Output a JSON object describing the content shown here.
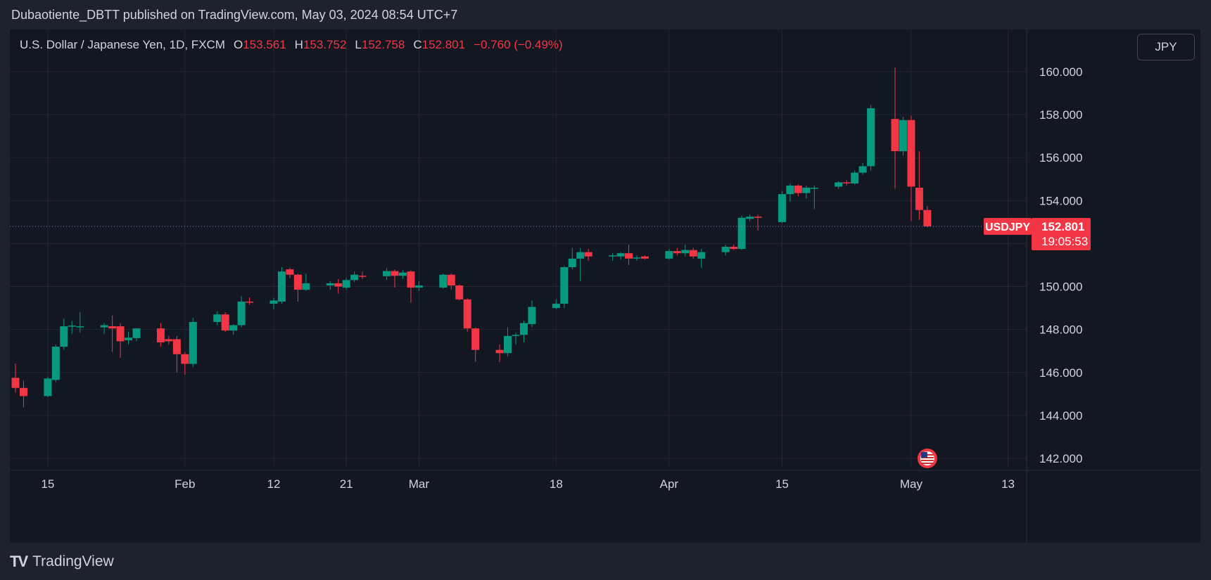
{
  "header": {
    "published_text": "Dubaotiente_DBTT published on TradingView.com, May 03, 2024 08:54 UTC+7"
  },
  "legend": {
    "symbol": "U.S. Dollar / Japanese Yen, 1D, FXCM",
    "open_label": "O",
    "open": "153.561",
    "high_label": "H",
    "high": "153.752",
    "low_label": "L",
    "low": "152.758",
    "close_label": "C",
    "close": "152.801",
    "change": "−0.760 (−0.49%)"
  },
  "currency_button": "JPY",
  "price_tag": {
    "ticker": "USDJPY",
    "price": "152.801",
    "countdown": "19:05:53"
  },
  "footer": {
    "logo_mark": "TV",
    "logo_text": "TradingView"
  },
  "colors": {
    "up": "#089981",
    "down": "#f23645",
    "background": "#131722",
    "grid": "#232632"
  },
  "chart_data": {
    "type": "candlestick",
    "symbol": "USDJPY",
    "ylim": [
      141.5,
      162.5
    ],
    "yticks": [
      160,
      158,
      156,
      154,
      152,
      150,
      148,
      146,
      144,
      142
    ],
    "ytick_labels": [
      "160.000",
      "158.000",
      "156.000",
      "154.000",
      "152.000",
      "150.000",
      "148.000",
      "146.000",
      "144.000",
      "142.000"
    ],
    "xtick_labels": [
      "15",
      "Feb",
      "12",
      "21",
      "Mar",
      "18",
      "Apr",
      "15",
      "May",
      "13"
    ],
    "xtick_dates": [
      "2024-01-15",
      "2024-02-01",
      "2024-02-12",
      "2024-02-21",
      "2024-03-01",
      "2024-03-18",
      "2024-04-01",
      "2024-04-15",
      "2024-05-01",
      "2024-05-13"
    ],
    "xlim": [
      "2024-01-11",
      "2024-05-14"
    ],
    "last_price": 152.801,
    "candles": [
      {
        "date": "2024-01-11",
        "o": 145.75,
        "h": 146.42,
        "l": 145.05,
        "c": 145.28
      },
      {
        "date": "2024-01-12",
        "o": 145.28,
        "h": 145.62,
        "l": 144.38,
        "c": 144.9
      },
      {
        "date": "2024-01-15",
        "o": 144.9,
        "h": 145.8,
        "l": 144.85,
        "c": 145.72
      },
      {
        "date": "2024-01-16",
        "o": 145.65,
        "h": 147.3,
        "l": 145.55,
        "c": 147.2
      },
      {
        "date": "2024-01-17",
        "o": 147.2,
        "h": 148.5,
        "l": 147.05,
        "c": 148.15
      },
      {
        "date": "2024-01-18",
        "o": 148.15,
        "h": 148.4,
        "l": 147.8,
        "c": 148.18
      },
      {
        "date": "2024-01-19",
        "o": 148.1,
        "h": 148.8,
        "l": 147.85,
        "c": 148.15
      },
      {
        "date": "2024-01-22",
        "o": 148.1,
        "h": 148.3,
        "l": 147.8,
        "c": 148.2
      },
      {
        "date": "2024-01-23",
        "o": 148.15,
        "h": 148.65,
        "l": 146.95,
        "c": 148.05
      },
      {
        "date": "2024-01-24",
        "o": 148.15,
        "h": 148.3,
        "l": 146.68,
        "c": 147.45
      },
      {
        "date": "2024-01-25",
        "o": 147.5,
        "h": 147.9,
        "l": 147.3,
        "c": 147.62
      },
      {
        "date": "2024-01-26",
        "o": 147.6,
        "h": 148.05,
        "l": 147.45,
        "c": 148.05
      },
      {
        "date": "2024-01-29",
        "o": 148.05,
        "h": 148.3,
        "l": 147.2,
        "c": 147.4
      },
      {
        "date": "2024-01-30",
        "o": 147.55,
        "h": 147.7,
        "l": 147.3,
        "c": 147.45
      },
      {
        "date": "2024-01-31",
        "o": 147.55,
        "h": 147.7,
        "l": 146.0,
        "c": 146.85
      },
      {
        "date": "2024-02-01",
        "o": 146.85,
        "h": 146.95,
        "l": 145.9,
        "c": 146.4
      },
      {
        "date": "2024-02-02",
        "o": 146.4,
        "h": 148.55,
        "l": 146.25,
        "c": 148.35
      },
      {
        "date": "2024-02-05",
        "o": 148.35,
        "h": 148.85,
        "l": 148.2,
        "c": 148.7
      },
      {
        "date": "2024-02-06",
        "o": 148.7,
        "h": 148.8,
        "l": 147.88,
        "c": 147.95
      },
      {
        "date": "2024-02-07",
        "o": 147.95,
        "h": 148.25,
        "l": 147.75,
        "c": 148.2
      },
      {
        "date": "2024-02-08",
        "o": 148.2,
        "h": 149.55,
        "l": 148.1,
        "c": 149.3
      },
      {
        "date": "2024-02-09",
        "o": 149.3,
        "h": 149.5,
        "l": 149.15,
        "c": 149.25
      },
      {
        "date": "2024-02-12",
        "o": 149.2,
        "h": 149.48,
        "l": 148.95,
        "c": 149.35
      },
      {
        "date": "2024-02-13",
        "o": 149.3,
        "h": 150.9,
        "l": 149.2,
        "c": 150.7
      },
      {
        "date": "2024-02-14",
        "o": 150.8,
        "h": 150.88,
        "l": 150.4,
        "c": 150.55
      },
      {
        "date": "2024-02-15",
        "o": 150.55,
        "h": 150.6,
        "l": 149.3,
        "c": 149.85
      },
      {
        "date": "2024-02-16",
        "o": 149.85,
        "h": 150.6,
        "l": 149.8,
        "c": 150.15
      },
      {
        "date": "2024-02-19",
        "o": 150.05,
        "h": 150.25,
        "l": 149.85,
        "c": 150.15
      },
      {
        "date": "2024-02-20",
        "o": 150.15,
        "h": 150.35,
        "l": 149.68,
        "c": 150.0
      },
      {
        "date": "2024-02-21",
        "o": 149.95,
        "h": 150.4,
        "l": 149.85,
        "c": 150.3
      },
      {
        "date": "2024-02-22",
        "o": 150.3,
        "h": 150.7,
        "l": 150.2,
        "c": 150.55
      },
      {
        "date": "2024-02-23",
        "o": 150.5,
        "h": 150.7,
        "l": 150.35,
        "c": 150.48
      },
      {
        "date": "2024-02-26",
        "o": 150.48,
        "h": 150.85,
        "l": 150.3,
        "c": 150.72
      },
      {
        "date": "2024-02-27",
        "o": 150.72,
        "h": 150.8,
        "l": 149.95,
        "c": 150.5
      },
      {
        "date": "2024-02-28",
        "o": 150.5,
        "h": 150.75,
        "l": 150.35,
        "c": 150.65
      },
      {
        "date": "2024-02-29",
        "o": 150.7,
        "h": 150.75,
        "l": 149.25,
        "c": 149.95
      },
      {
        "date": "2024-03-01",
        "o": 149.95,
        "h": 150.25,
        "l": 149.8,
        "c": 150.05
      },
      {
        "date": "2024-03-04",
        "o": 149.95,
        "h": 150.6,
        "l": 149.9,
        "c": 150.55
      },
      {
        "date": "2024-03-05",
        "o": 150.55,
        "h": 150.6,
        "l": 149.85,
        "c": 150.05
      },
      {
        "date": "2024-03-06",
        "o": 150.05,
        "h": 150.1,
        "l": 149.35,
        "c": 149.4
      },
      {
        "date": "2024-03-07",
        "o": 149.4,
        "h": 149.45,
        "l": 147.9,
        "c": 148.05
      },
      {
        "date": "2024-03-08",
        "o": 148.05,
        "h": 148.1,
        "l": 146.5,
        "c": 147.05
      },
      {
        "date": "2024-03-11",
        "o": 147.05,
        "h": 147.3,
        "l": 146.48,
        "c": 146.9
      },
      {
        "date": "2024-03-12",
        "o": 146.9,
        "h": 148.1,
        "l": 146.75,
        "c": 147.7
      },
      {
        "date": "2024-03-13",
        "o": 147.7,
        "h": 147.85,
        "l": 147.3,
        "c": 147.75
      },
      {
        "date": "2024-03-14",
        "o": 147.75,
        "h": 148.4,
        "l": 147.4,
        "c": 148.3
      },
      {
        "date": "2024-03-15",
        "o": 148.25,
        "h": 149.35,
        "l": 148.1,
        "c": 149.05
      },
      {
        "date": "2024-03-18",
        "o": 149.0,
        "h": 149.4,
        "l": 148.95,
        "c": 149.2
      },
      {
        "date": "2024-03-19",
        "o": 149.2,
        "h": 150.95,
        "l": 149.0,
        "c": 150.9
      },
      {
        "date": "2024-03-20",
        "o": 150.9,
        "h": 151.8,
        "l": 150.8,
        "c": 151.3
      },
      {
        "date": "2024-03-21",
        "o": 151.3,
        "h": 151.8,
        "l": 150.25,
        "c": 151.6
      },
      {
        "date": "2024-03-22",
        "o": 151.6,
        "h": 151.75,
        "l": 151.2,
        "c": 151.4
      },
      {
        "date": "2024-03-25",
        "o": 151.4,
        "h": 151.55,
        "l": 151.2,
        "c": 151.45
      },
      {
        "date": "2024-03-26",
        "o": 151.4,
        "h": 151.6,
        "l": 151.25,
        "c": 151.55
      },
      {
        "date": "2024-03-27",
        "o": 151.55,
        "h": 151.95,
        "l": 151.0,
        "c": 151.3
      },
      {
        "date": "2024-03-28",
        "o": 151.3,
        "h": 151.45,
        "l": 151.2,
        "c": 151.35
      },
      {
        "date": "2024-03-29",
        "o": 151.4,
        "h": 151.45,
        "l": 151.25,
        "c": 151.3
      },
      {
        "date": "2024-04-01",
        "o": 151.3,
        "h": 151.75,
        "l": 151.25,
        "c": 151.65
      },
      {
        "date": "2024-04-02",
        "o": 151.65,
        "h": 151.8,
        "l": 151.45,
        "c": 151.55
      },
      {
        "date": "2024-04-03",
        "o": 151.55,
        "h": 151.95,
        "l": 151.4,
        "c": 151.7
      },
      {
        "date": "2024-04-04",
        "o": 151.7,
        "h": 151.8,
        "l": 151.3,
        "c": 151.4
      },
      {
        "date": "2024-04-05",
        "o": 151.3,
        "h": 151.75,
        "l": 150.85,
        "c": 151.6
      },
      {
        "date": "2024-04-08",
        "o": 151.6,
        "h": 151.95,
        "l": 151.45,
        "c": 151.85
      },
      {
        "date": "2024-04-09",
        "o": 151.85,
        "h": 151.95,
        "l": 151.7,
        "c": 151.75
      },
      {
        "date": "2024-04-10",
        "o": 151.75,
        "h": 153.3,
        "l": 151.7,
        "c": 153.2
      },
      {
        "date": "2024-04-11",
        "o": 153.15,
        "h": 153.35,
        "l": 153.05,
        "c": 153.25
      },
      {
        "date": "2024-04-12",
        "o": 153.25,
        "h": 153.35,
        "l": 152.6,
        "c": 153.2
      },
      {
        "date": "2024-04-15",
        "o": 153.0,
        "h": 154.45,
        "l": 152.95,
        "c": 154.3
      },
      {
        "date": "2024-04-16",
        "o": 154.3,
        "h": 154.8,
        "l": 153.95,
        "c": 154.7
      },
      {
        "date": "2024-04-17",
        "o": 154.7,
        "h": 154.75,
        "l": 154.2,
        "c": 154.35
      },
      {
        "date": "2024-04-18",
        "o": 154.35,
        "h": 154.7,
        "l": 154.1,
        "c": 154.6
      },
      {
        "date": "2024-04-19",
        "o": 154.6,
        "h": 154.7,
        "l": 153.6,
        "c": 154.6
      },
      {
        "date": "2024-04-22",
        "o": 154.65,
        "h": 154.9,
        "l": 154.55,
        "c": 154.85
      },
      {
        "date": "2024-04-23",
        "o": 154.85,
        "h": 154.95,
        "l": 154.7,
        "c": 154.8
      },
      {
        "date": "2024-04-24",
        "o": 154.8,
        "h": 155.4,
        "l": 154.75,
        "c": 155.3
      },
      {
        "date": "2024-04-25",
        "o": 155.3,
        "h": 155.75,
        "l": 155.2,
        "c": 155.6
      },
      {
        "date": "2024-04-26",
        "o": 155.6,
        "h": 158.45,
        "l": 155.4,
        "c": 158.3
      },
      {
        "date": "2024-04-29",
        "o": 157.8,
        "h": 160.2,
        "l": 154.55,
        "c": 156.3
      },
      {
        "date": "2024-04-30",
        "o": 156.3,
        "h": 157.9,
        "l": 156.1,
        "c": 157.75
      },
      {
        "date": "2024-05-01",
        "o": 157.75,
        "h": 157.95,
        "l": 153.05,
        "c": 154.65
      },
      {
        "date": "2024-05-02",
        "o": 154.6,
        "h": 156.3,
        "l": 153.1,
        "c": 153.56
      },
      {
        "date": "2024-05-03",
        "o": 153.561,
        "h": 153.752,
        "l": 152.758,
        "c": 152.801
      }
    ]
  }
}
